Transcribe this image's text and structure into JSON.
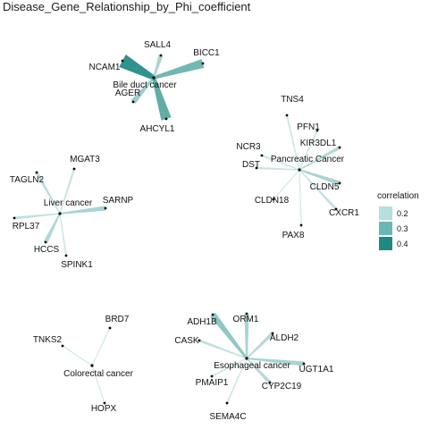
{
  "title": "Disease_Gene_Relationship_by_Phi_coefficient",
  "legend": {
    "title": "correlation",
    "items": [
      {
        "label": "0.2",
        "value": 0.2,
        "color": "#b5dede"
      },
      {
        "label": "0.3",
        "value": 0.3,
        "color": "#6ab8b6"
      },
      {
        "label": "0.4",
        "value": 0.4,
        "color": "#1e8a82"
      }
    ]
  },
  "colors": {
    "low": "#d6ecec",
    "high": "#1e8a82",
    "node": "#000000"
  },
  "chart_data": {
    "type": "network",
    "diseases": [
      {
        "name": "Bile duct cancer",
        "genes": [
          {
            "name": "NCAM1",
            "correlation": 0.42
          },
          {
            "name": "SALL4",
            "correlation": 0.22
          },
          {
            "name": "BICC1",
            "correlation": 0.31
          },
          {
            "name": "AGER",
            "correlation": 0.24
          },
          {
            "name": "AHCYL1",
            "correlation": 0.34
          }
        ]
      },
      {
        "name": "Pancreatic Cancer",
        "genes": [
          {
            "name": "TNS4",
            "correlation": 0.16
          },
          {
            "name": "PFN1",
            "correlation": 0.16
          },
          {
            "name": "KIR3DL1",
            "correlation": 0.2
          },
          {
            "name": "NCR3",
            "correlation": 0.16
          },
          {
            "name": "DST",
            "correlation": 0.17
          },
          {
            "name": "CLDN5",
            "correlation": 0.22
          },
          {
            "name": "CLDN18",
            "correlation": 0.15
          },
          {
            "name": "CXCR1",
            "correlation": 0.18
          },
          {
            "name": "PAX8",
            "correlation": 0.15
          }
        ]
      },
      {
        "name": "Liver cancer",
        "genes": [
          {
            "name": "MGAT3",
            "correlation": 0.17
          },
          {
            "name": "TAGLN2",
            "correlation": 0.19
          },
          {
            "name": "SARNP",
            "correlation": 0.22
          },
          {
            "name": "RPL37",
            "correlation": 0.18
          },
          {
            "name": "HCCS",
            "correlation": 0.21
          },
          {
            "name": "SPINK1",
            "correlation": 0.16
          }
        ]
      },
      {
        "name": "Colorectal cancer",
        "genes": [
          {
            "name": "BRD7",
            "correlation": 0.15
          },
          {
            "name": "TNKS2",
            "correlation": 0.15
          },
          {
            "name": "HOPX",
            "correlation": 0.15
          }
        ]
      },
      {
        "name": "Esophageal cancer",
        "genes": [
          {
            "name": "ADH1B",
            "correlation": 0.26
          },
          {
            "name": "ORM1",
            "correlation": 0.22
          },
          {
            "name": "ALDH2",
            "correlation": 0.2
          },
          {
            "name": "CASK",
            "correlation": 0.18
          },
          {
            "name": "UGT1A1",
            "correlation": 0.22
          },
          {
            "name": "PMAIP1",
            "correlation": 0.16
          },
          {
            "name": "CYP2C19",
            "correlation": 0.2
          },
          {
            "name": "SEMA4C",
            "correlation": 0.16
          }
        ]
      }
    ]
  }
}
